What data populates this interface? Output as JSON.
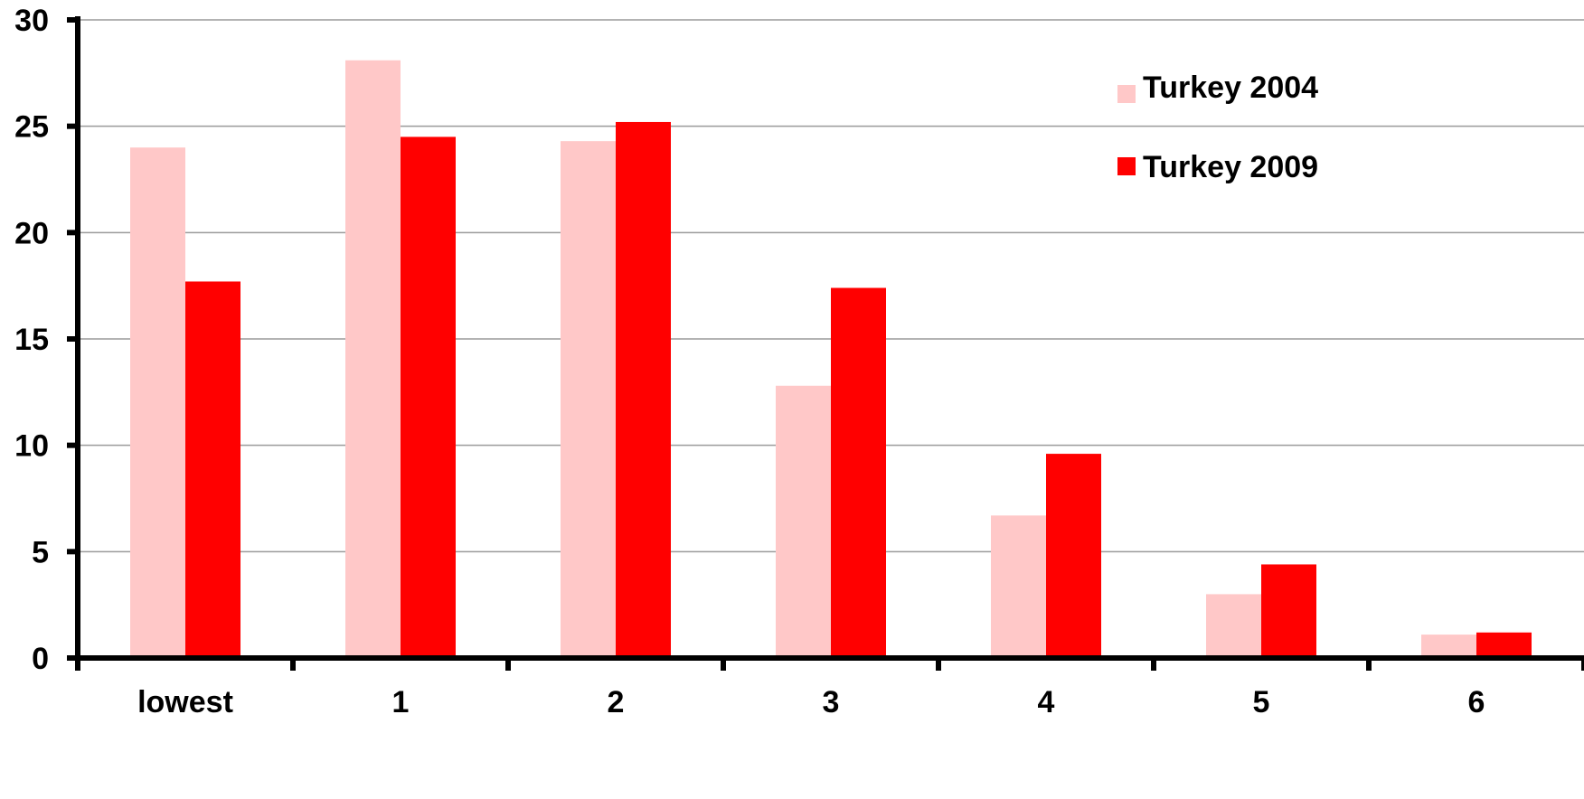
{
  "chart_data": {
    "type": "bar",
    "title": "",
    "xlabel": "",
    "ylabel": "",
    "categories": [
      "lowest",
      "1",
      "2",
      "3",
      "4",
      "5",
      "6"
    ],
    "series": [
      {
        "name": "Turkey 2004",
        "color": "#ffc8c8",
        "values": [
          24.0,
          28.1,
          24.3,
          12.8,
          6.7,
          3.0,
          1.1
        ]
      },
      {
        "name": "Turkey 2009",
        "color": "#ff0000",
        "values": [
          17.7,
          24.5,
          25.2,
          17.4,
          9.6,
          4.4,
          1.2
        ]
      }
    ],
    "ylim": [
      0,
      30
    ],
    "yticks": [
      "0",
      "5",
      "10",
      "15",
      "20",
      "25",
      "30"
    ],
    "grid": true,
    "legend_position": "top-right"
  }
}
